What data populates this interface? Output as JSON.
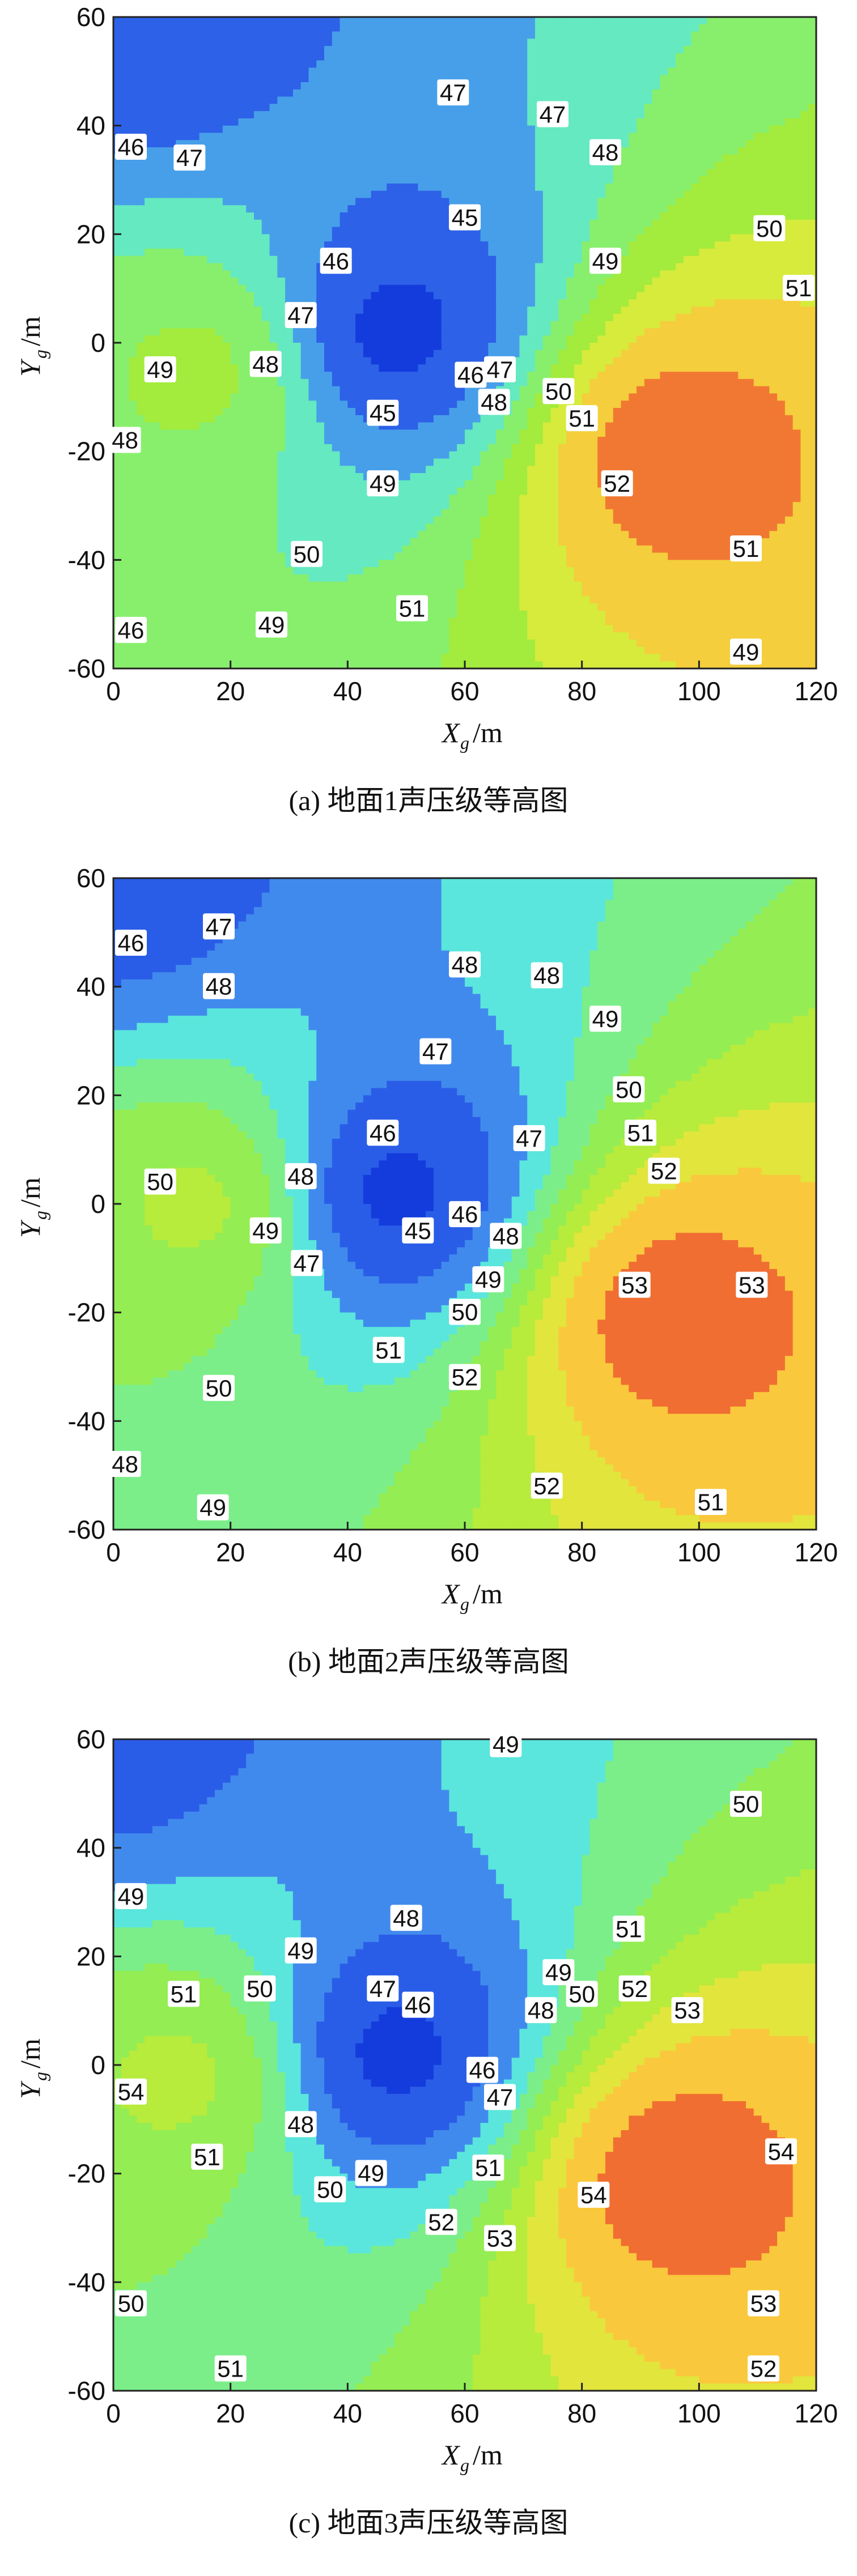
{
  "chart_data": [
    {
      "type": "contour",
      "caption": "(a) 地面1声压级等高图",
      "xlabel": "X",
      "xlabel_sub": "g",
      "xlabel_unit": "/m",
      "ylabel": "Y",
      "ylabel_sub": "g",
      "ylabel_unit": "/m",
      "xlim": [
        0,
        120
      ],
      "ylim": [
        -60,
        60
      ],
      "xticks": [
        "0",
        "20",
        "40",
        "60",
        "80",
        "100",
        "120"
      ],
      "yticks": [
        "-60",
        "-40",
        "-20",
        "0",
        "20",
        "40",
        "60"
      ],
      "levels": [
        45,
        46,
        47,
        48,
        49,
        50,
        51,
        52
      ],
      "peaks": [
        {
          "x": 95,
          "y": -20,
          "value": 52.6
        },
        {
          "x": 48,
          "y": 2,
          "value": 44.6
        },
        {
          "x": 0,
          "y": 60,
          "value": 45.0
        },
        {
          "x": 15,
          "y": -5,
          "value": 49.3
        }
      ],
      "contour_labels": [
        {
          "text": "46",
          "x": 3,
          "y": 36
        },
        {
          "text": "47",
          "x": 13,
          "y": 34
        },
        {
          "text": "47",
          "x": 58,
          "y": 46
        },
        {
          "text": "47",
          "x": 75,
          "y": 42
        },
        {
          "text": "48",
          "x": 84,
          "y": 35
        },
        {
          "text": "45",
          "x": 60,
          "y": 23
        },
        {
          "text": "46",
          "x": 38,
          "y": 15
        },
        {
          "text": "47",
          "x": 32,
          "y": 5
        },
        {
          "text": "48",
          "x": 26,
          "y": -4
        },
        {
          "text": "49",
          "x": 8,
          "y": -5
        },
        {
          "text": "49",
          "x": 84,
          "y": 15
        },
        {
          "text": "50",
          "x": 112,
          "y": 21
        },
        {
          "text": "51",
          "x": 117,
          "y": 10
        },
        {
          "text": "50",
          "x": 76,
          "y": -9
        },
        {
          "text": "51",
          "x": 80,
          "y": -14
        },
        {
          "text": "46",
          "x": 61,
          "y": -6
        },
        {
          "text": "47",
          "x": 66,
          "y": -5
        },
        {
          "text": "48",
          "x": 65,
          "y": -11
        },
        {
          "text": "45",
          "x": 46,
          "y": -13
        },
        {
          "text": "49",
          "x": 46,
          "y": -26
        },
        {
          "text": "52",
          "x": 86,
          "y": -26
        },
        {
          "text": "51",
          "x": 108,
          "y": -38
        },
        {
          "text": "50",
          "x": 33,
          "y": -39
        },
        {
          "text": "51",
          "x": 51,
          "y": -49
        },
        {
          "text": "49",
          "x": 27,
          "y": -52
        },
        {
          "text": "49",
          "x": 108,
          "y": -57
        },
        {
          "text": "46",
          "x": 3,
          "y": -53
        },
        {
          "text": "48",
          "x": 2,
          "y": -18
        }
      ]
    },
    {
      "type": "contour",
      "caption": "(b) 地面2声压级等高图",
      "xlabel": "X",
      "xlabel_sub": "g",
      "xlabel_unit": "/m",
      "ylabel": "Y",
      "ylabel_sub": "g",
      "ylabel_unit": "/m",
      "xlim": [
        0,
        120
      ],
      "ylim": [
        -60,
        60
      ],
      "xticks": [
        "0",
        "20",
        "40",
        "60",
        "80",
        "100",
        "120"
      ],
      "yticks": [
        "-60",
        "-40",
        "-20",
        "0",
        "20",
        "40",
        "60"
      ],
      "levels": [
        45,
        46,
        47,
        48,
        49,
        50,
        51,
        52,
        53
      ],
      "peaks": [
        {
          "x": 95,
          "y": -20,
          "value": 53.6
        },
        {
          "x": 48,
          "y": 2,
          "value": 44.6
        },
        {
          "x": 0,
          "y": 60,
          "value": 45.3
        },
        {
          "x": 15,
          "y": 0,
          "value": 50.3
        }
      ],
      "contour_labels": [
        {
          "text": "46",
          "x": 3,
          "y": 48
        },
        {
          "text": "47",
          "x": 18,
          "y": 51
        },
        {
          "text": "48",
          "x": 18,
          "y": 40
        },
        {
          "text": "48",
          "x": 60,
          "y": 44
        },
        {
          "text": "48",
          "x": 74,
          "y": 42
        },
        {
          "text": "49",
          "x": 84,
          "y": 34
        },
        {
          "text": "47",
          "x": 55,
          "y": 28
        },
        {
          "text": "50",
          "x": 88,
          "y": 21
        },
        {
          "text": "46",
          "x": 46,
          "y": 13
        },
        {
          "text": "51",
          "x": 90,
          "y": 13
        },
        {
          "text": "52",
          "x": 94,
          "y": 6
        },
        {
          "text": "47",
          "x": 71,
          "y": 12
        },
        {
          "text": "50",
          "x": 8,
          "y": 4
        },
        {
          "text": "48",
          "x": 32,
          "y": 5
        },
        {
          "text": "49",
          "x": 26,
          "y": -5
        },
        {
          "text": "47",
          "x": 33,
          "y": -11
        },
        {
          "text": "45",
          "x": 52,
          "y": -5
        },
        {
          "text": "46",
          "x": 60,
          "y": -2
        },
        {
          "text": "48",
          "x": 67,
          "y": -6
        },
        {
          "text": "49",
          "x": 64,
          "y": -14
        },
        {
          "text": "50",
          "x": 60,
          "y": -20
        },
        {
          "text": "51",
          "x": 47,
          "y": -27
        },
        {
          "text": "52",
          "x": 60,
          "y": -32
        },
        {
          "text": "53",
          "x": 89,
          "y": -15
        },
        {
          "text": "53",
          "x": 109,
          "y": -15
        },
        {
          "text": "50",
          "x": 18,
          "y": -34
        },
        {
          "text": "48",
          "x": 2,
          "y": -48
        },
        {
          "text": "49",
          "x": 17,
          "y": -56
        },
        {
          "text": "52",
          "x": 74,
          "y": -52
        },
        {
          "text": "51",
          "x": 102,
          "y": -55
        }
      ]
    },
    {
      "type": "contour",
      "caption": "(c) 地面3声压级等高图",
      "xlabel": "X",
      "xlabel_sub": "g",
      "xlabel_unit": "/m",
      "ylabel": "Y",
      "ylabel_sub": "g",
      "ylabel_unit": "/m",
      "xlim": [
        0,
        120
      ],
      "ylim": [
        -60,
        60
      ],
      "xticks": [
        "0",
        "20",
        "40",
        "60",
        "80",
        "100",
        "120"
      ],
      "yticks": [
        "-60",
        "-40",
        "-20",
        "0",
        "20",
        "40",
        "60"
      ],
      "levels": [
        46,
        47,
        48,
        49,
        50,
        51,
        52,
        53,
        54
      ],
      "peaks": [
        {
          "x": 95,
          "y": -20,
          "value": 54.6
        },
        {
          "x": 48,
          "y": 2,
          "value": 45.6
        },
        {
          "x": 0,
          "y": 60,
          "value": 46.5
        },
        {
          "x": 12,
          "y": -2,
          "value": 51.3
        }
      ],
      "contour_labels": [
        {
          "text": "49",
          "x": 67,
          "y": 59
        },
        {
          "text": "50",
          "x": 108,
          "y": 48
        },
        {
          "text": "49",
          "x": 3,
          "y": 31
        },
        {
          "text": "48",
          "x": 50,
          "y": 27
        },
        {
          "text": "49",
          "x": 32,
          "y": 21
        },
        {
          "text": "51",
          "x": 88,
          "y": 25
        },
        {
          "text": "47",
          "x": 46,
          "y": 14
        },
        {
          "text": "46",
          "x": 52,
          "y": 11
        },
        {
          "text": "50",
          "x": 25,
          "y": 14
        },
        {
          "text": "49",
          "x": 76,
          "y": 17
        },
        {
          "text": "50",
          "x": 80,
          "y": 13
        },
        {
          "text": "52",
          "x": 89,
          "y": 14
        },
        {
          "text": "53",
          "x": 98,
          "y": 10
        },
        {
          "text": "48",
          "x": 73,
          "y": 10
        },
        {
          "text": "51",
          "x": 12,
          "y": 13
        },
        {
          "text": "46",
          "x": 63,
          "y": -1
        },
        {
          "text": "47",
          "x": 66,
          "y": -6
        },
        {
          "text": "54",
          "x": 3,
          "y": -5
        },
        {
          "text": "51",
          "x": 16,
          "y": -17
        },
        {
          "text": "48",
          "x": 32,
          "y": -11
        },
        {
          "text": "49",
          "x": 44,
          "y": -20
        },
        {
          "text": "50",
          "x": 37,
          "y": -23
        },
        {
          "text": "51",
          "x": 64,
          "y": -19
        },
        {
          "text": "52",
          "x": 56,
          "y": -29
        },
        {
          "text": "53",
          "x": 66,
          "y": -32
        },
        {
          "text": "54",
          "x": 82,
          "y": -24
        },
        {
          "text": "54",
          "x": 114,
          "y": -16
        },
        {
          "text": "50",
          "x": 3,
          "y": -44
        },
        {
          "text": "53",
          "x": 111,
          "y": -44
        },
        {
          "text": "52",
          "x": 111,
          "y": -56
        },
        {
          "text": "51",
          "x": 20,
          "y": -56
        }
      ]
    }
  ]
}
